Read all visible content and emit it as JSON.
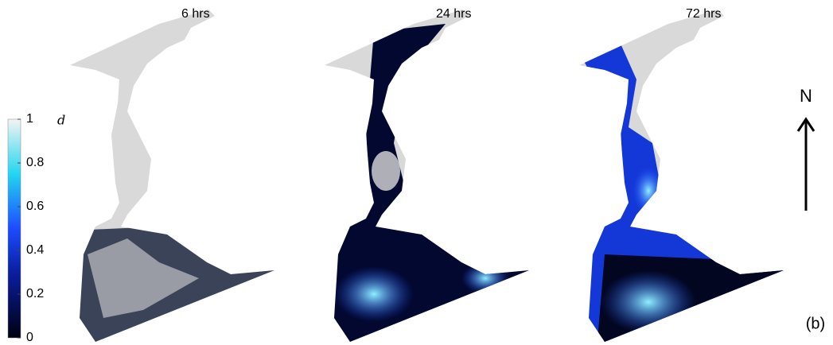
{
  "panels": [
    {
      "label": "6 hrs"
    },
    {
      "label": "24 hrs"
    },
    {
      "label": "72 hrs"
    }
  ],
  "colorbar": {
    "symbol": "d",
    "ticks": [
      0,
      0.2,
      0.4,
      0.6,
      0.8,
      1
    ]
  },
  "north": "N",
  "figure_label": "(b)"
}
